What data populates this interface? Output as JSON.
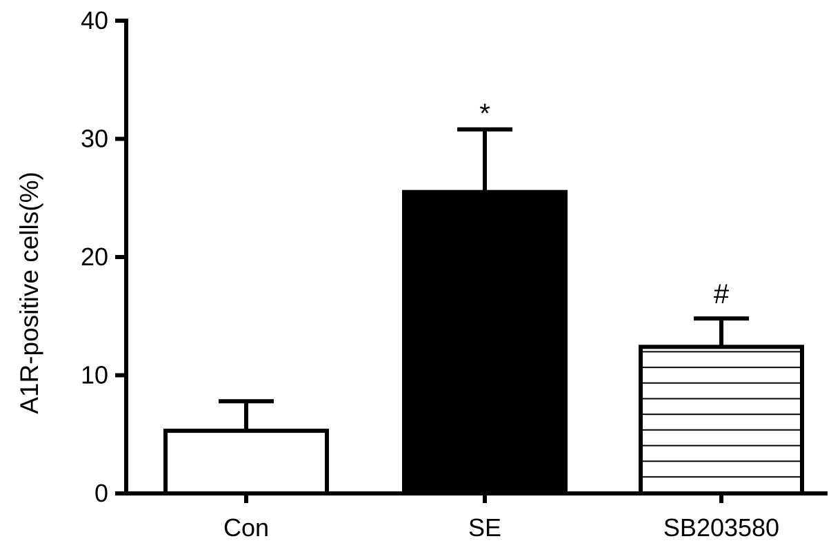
{
  "chart_data": {
    "type": "bar",
    "title": "",
    "xlabel": "",
    "ylabel": "A1R-positive cells(%)",
    "ylim": [
      0,
      40
    ],
    "yticks": [
      0,
      10,
      20,
      30,
      40
    ],
    "categories": [
      "Con",
      "SE",
      "SB203580"
    ],
    "values": [
      5.3,
      25.5,
      12.4
    ],
    "errors": [
      2.5,
      5.3,
      2.4
    ],
    "annotations": [
      "",
      "*",
      "#"
    ],
    "fills": [
      "white",
      "black",
      "hatched"
    ],
    "grid": false,
    "legend": "none"
  },
  "colors": {
    "axis": "#000000",
    "bar_outline": "#000000",
    "background": "#ffffff"
  }
}
